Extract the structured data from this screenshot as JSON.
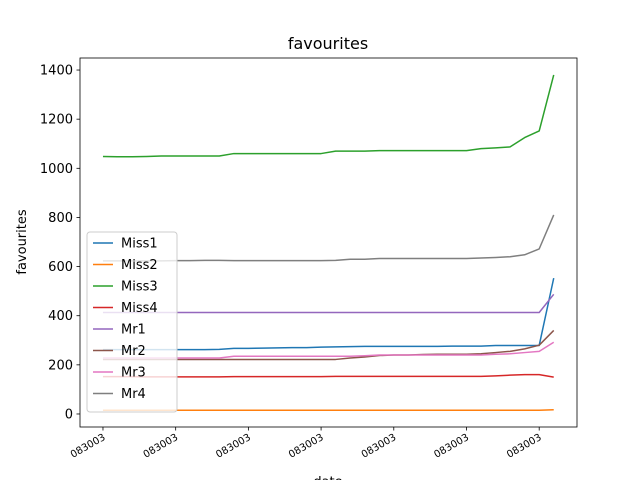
{
  "chart_data": {
    "type": "line",
    "title": "favourites",
    "x_label": "date",
    "y_label": "favourites",
    "x": [
      0,
      1,
      2,
      3,
      4,
      5,
      6,
      7,
      8,
      9,
      10,
      11,
      12,
      13,
      14,
      15,
      16,
      17,
      18,
      19,
      20,
      21,
      22,
      23,
      24,
      25,
      26,
      27,
      28,
      29,
      30,
      31
    ],
    "xlim": [
      -1.58,
      32.6
    ],
    "xticks": [
      {
        "value": 0,
        "label": "083003"
      },
      {
        "value": 5,
        "label": "083003"
      },
      {
        "value": 10,
        "label": "083003"
      },
      {
        "value": 15,
        "label": "083003"
      },
      {
        "value": 20,
        "label": "083003"
      },
      {
        "value": 25,
        "label": "083003"
      },
      {
        "value": 30,
        "label": "083003"
      }
    ],
    "ylim": [
      -53,
      1449
    ],
    "yticks": [
      0,
      200,
      400,
      600,
      800,
      1000,
      1200,
      1400
    ],
    "grid": false,
    "legend": "lower left",
    "series": [
      {
        "name": "Miss1",
        "color": "#1f77b4",
        "values": [
          262,
          262,
          262,
          262,
          262,
          262,
          262,
          262,
          263,
          267,
          267,
          268,
          269,
          270,
          270,
          272,
          273,
          274,
          275,
          275,
          275,
          275,
          275,
          275,
          276,
          276,
          276,
          279,
          279,
          279,
          279,
          553
        ]
      },
      {
        "name": "Miss2",
        "color": "#ff7f0e",
        "values": [
          15,
          15,
          15,
          15,
          15,
          15,
          15,
          15,
          15,
          15,
          15,
          15,
          15,
          15,
          15,
          15,
          15,
          15,
          15,
          15,
          15,
          15,
          15,
          15,
          15,
          15,
          15,
          15,
          15,
          15,
          15,
          17
        ]
      },
      {
        "name": "Miss3",
        "color": "#2ca02c",
        "values": [
          1048,
          1047,
          1047,
          1048,
          1050,
          1050,
          1050,
          1050,
          1050,
          1060,
          1060,
          1060,
          1060,
          1060,
          1060,
          1060,
          1070,
          1070,
          1070,
          1072,
          1072,
          1072,
          1072,
          1072,
          1072,
          1072,
          1080,
          1083,
          1087,
          1125,
          1152,
          1380
        ]
      },
      {
        "name": "Miss4",
        "color": "#d62728",
        "values": [
          152,
          152,
          152,
          151,
          151,
          151,
          151,
          151,
          151,
          152,
          152,
          152,
          152,
          152,
          152,
          152,
          153,
          153,
          153,
          153,
          153,
          153,
          153,
          153,
          153,
          153,
          153,
          155,
          158,
          160,
          160,
          150
        ]
      },
      {
        "name": "Mr1",
        "color": "#9467bd",
        "values": [
          413,
          413,
          413,
          413,
          413,
          413,
          413,
          413,
          413,
          413,
          413,
          413,
          413,
          413,
          413,
          413,
          413,
          413,
          413,
          413,
          413,
          413,
          413,
          413,
          413,
          413,
          413,
          413,
          413,
          413,
          413,
          487
        ]
      },
      {
        "name": "Mr2",
        "color": "#8c564b",
        "values": [
          222,
          222,
          222,
          222,
          222,
          222,
          222,
          222,
          222,
          222,
          222,
          222,
          222,
          222,
          222,
          222,
          222,
          228,
          232,
          238,
          240,
          240,
          242,
          243,
          243,
          243,
          245,
          250,
          255,
          265,
          280,
          340
        ]
      },
      {
        "name": "Mr3",
        "color": "#e377c2",
        "values": [
          228,
          228,
          228,
          228,
          228,
          228,
          228,
          228,
          228,
          235,
          235,
          235,
          235,
          235,
          235,
          235,
          235,
          235,
          237,
          240,
          240,
          240,
          240,
          240,
          240,
          240,
          240,
          243,
          245,
          250,
          255,
          292
        ]
      },
      {
        "name": "Mr4",
        "color": "#7f7f7f",
        "values": [
          623,
          623,
          623,
          623,
          623,
          624,
          624,
          625,
          625,
          624,
          624,
          624,
          624,
          624,
          624,
          624,
          625,
          630,
          630,
          633,
          633,
          633,
          633,
          633,
          633,
          633,
          635,
          637,
          640,
          648,
          672,
          810
        ]
      }
    ]
  }
}
